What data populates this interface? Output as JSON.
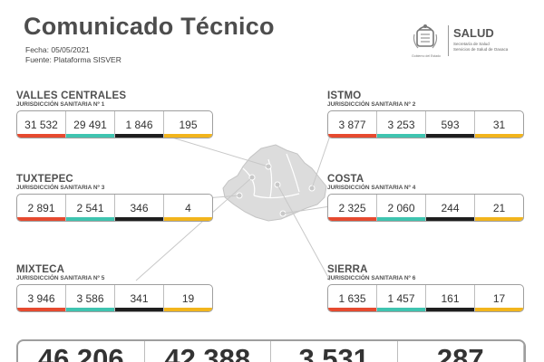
{
  "header": {
    "title": "Comunicado Técnico",
    "date": "Fecha: 05/05/2021",
    "source": "Fuente: Plataforma SISVER"
  },
  "logo": {
    "seal_caption": "Gobierno del Estado",
    "name": "SALUD",
    "sub1": "Secretaría de Salud",
    "sub2": "Servicios de Salud de Oaxaca"
  },
  "regions": [
    {
      "name": "VALLES CENTRALES",
      "jurisdiction": "JURISDICCIÓN SANITARIA Nº 1",
      "values": [
        "31 532",
        "29 491",
        "1 846",
        "195"
      ]
    },
    {
      "name": "ISTMO",
      "jurisdiction": "JURISDICCIÓN SANITARIA Nº 2",
      "values": [
        "3 877",
        "3 253",
        "593",
        "31"
      ]
    },
    {
      "name": "TUXTEPEC",
      "jurisdiction": "JURISDICCIÓN SANITARIA Nº 3",
      "values": [
        "2 891",
        "2 541",
        "346",
        "4"
      ]
    },
    {
      "name": "COSTA",
      "jurisdiction": "JURISDICCIÓN SANITARIA Nº 4",
      "values": [
        "2 325",
        "2 060",
        "244",
        "21"
      ]
    },
    {
      "name": "MIXTECA",
      "jurisdiction": "JURISDICCIÓN SANITARIA Nº 5",
      "values": [
        "3 946",
        "3 586",
        "341",
        "19"
      ]
    },
    {
      "name": "SIERRA",
      "jurisdiction": "JURISDICCIÓN SANITARIA Nº 6",
      "values": [
        "1 635",
        "1 457",
        "161",
        "17"
      ]
    }
  ],
  "totals": [
    "46 206",
    "42 388",
    "3 531",
    "287"
  ],
  "colors": {
    "confirmed": "#e64a2f",
    "recovered": "#3fc4b0",
    "deaths": "#1e1e1e",
    "active": "#f2b51c",
    "map_fill": "#dcdcdc"
  }
}
